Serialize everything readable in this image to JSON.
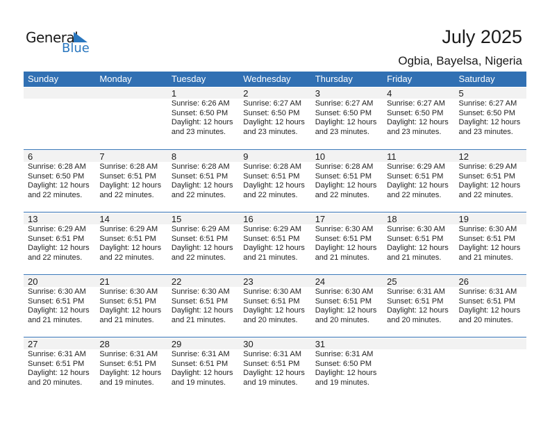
{
  "logo": {
    "word1": "General",
    "word2": "Blue"
  },
  "title": "July 2025",
  "location": "Ogbia, Bayelsa, Nigeria",
  "colors": {
    "header": "#3170b3",
    "brand": "#2a77bf",
    "band": "#f2f2f2"
  },
  "weekdays": [
    "Sunday",
    "Monday",
    "Tuesday",
    "Wednesday",
    "Thursday",
    "Friday",
    "Saturday"
  ],
  "weeks": [
    [
      null,
      null,
      {
        "day": "1",
        "sunrise": "Sunrise: 6:26 AM",
        "sunset": "Sunset: 6:50 PM",
        "daylight": "Daylight: 12 hours",
        "minutes": "and 23 minutes."
      },
      {
        "day": "2",
        "sunrise": "Sunrise: 6:27 AM",
        "sunset": "Sunset: 6:50 PM",
        "daylight": "Daylight: 12 hours",
        "minutes": "and 23 minutes."
      },
      {
        "day": "3",
        "sunrise": "Sunrise: 6:27 AM",
        "sunset": "Sunset: 6:50 PM",
        "daylight": "Daylight: 12 hours",
        "minutes": "and 23 minutes."
      },
      {
        "day": "4",
        "sunrise": "Sunrise: 6:27 AM",
        "sunset": "Sunset: 6:50 PM",
        "daylight": "Daylight: 12 hours",
        "minutes": "and 23 minutes."
      },
      {
        "day": "5",
        "sunrise": "Sunrise: 6:27 AM",
        "sunset": "Sunset: 6:50 PM",
        "daylight": "Daylight: 12 hours",
        "minutes": "and 23 minutes."
      }
    ],
    [
      {
        "day": "6",
        "sunrise": "Sunrise: 6:28 AM",
        "sunset": "Sunset: 6:50 PM",
        "daylight": "Daylight: 12 hours",
        "minutes": "and 22 minutes."
      },
      {
        "day": "7",
        "sunrise": "Sunrise: 6:28 AM",
        "sunset": "Sunset: 6:51 PM",
        "daylight": "Daylight: 12 hours",
        "minutes": "and 22 minutes."
      },
      {
        "day": "8",
        "sunrise": "Sunrise: 6:28 AM",
        "sunset": "Sunset: 6:51 PM",
        "daylight": "Daylight: 12 hours",
        "minutes": "and 22 minutes."
      },
      {
        "day": "9",
        "sunrise": "Sunrise: 6:28 AM",
        "sunset": "Sunset: 6:51 PM",
        "daylight": "Daylight: 12 hours",
        "minutes": "and 22 minutes."
      },
      {
        "day": "10",
        "sunrise": "Sunrise: 6:28 AM",
        "sunset": "Sunset: 6:51 PM",
        "daylight": "Daylight: 12 hours",
        "minutes": "and 22 minutes."
      },
      {
        "day": "11",
        "sunrise": "Sunrise: 6:29 AM",
        "sunset": "Sunset: 6:51 PM",
        "daylight": "Daylight: 12 hours",
        "minutes": "and 22 minutes."
      },
      {
        "day": "12",
        "sunrise": "Sunrise: 6:29 AM",
        "sunset": "Sunset: 6:51 PM",
        "daylight": "Daylight: 12 hours",
        "minutes": "and 22 minutes."
      }
    ],
    [
      {
        "day": "13",
        "sunrise": "Sunrise: 6:29 AM",
        "sunset": "Sunset: 6:51 PM",
        "daylight": "Daylight: 12 hours",
        "minutes": "and 22 minutes."
      },
      {
        "day": "14",
        "sunrise": "Sunrise: 6:29 AM",
        "sunset": "Sunset: 6:51 PM",
        "daylight": "Daylight: 12 hours",
        "minutes": "and 22 minutes."
      },
      {
        "day": "15",
        "sunrise": "Sunrise: 6:29 AM",
        "sunset": "Sunset: 6:51 PM",
        "daylight": "Daylight: 12 hours",
        "minutes": "and 22 minutes."
      },
      {
        "day": "16",
        "sunrise": "Sunrise: 6:29 AM",
        "sunset": "Sunset: 6:51 PM",
        "daylight": "Daylight: 12 hours",
        "minutes": "and 21 minutes."
      },
      {
        "day": "17",
        "sunrise": "Sunrise: 6:30 AM",
        "sunset": "Sunset: 6:51 PM",
        "daylight": "Daylight: 12 hours",
        "minutes": "and 21 minutes."
      },
      {
        "day": "18",
        "sunrise": "Sunrise: 6:30 AM",
        "sunset": "Sunset: 6:51 PM",
        "daylight": "Daylight: 12 hours",
        "minutes": "and 21 minutes."
      },
      {
        "day": "19",
        "sunrise": "Sunrise: 6:30 AM",
        "sunset": "Sunset: 6:51 PM",
        "daylight": "Daylight: 12 hours",
        "minutes": "and 21 minutes."
      }
    ],
    [
      {
        "day": "20",
        "sunrise": "Sunrise: 6:30 AM",
        "sunset": "Sunset: 6:51 PM",
        "daylight": "Daylight: 12 hours",
        "minutes": "and 21 minutes."
      },
      {
        "day": "21",
        "sunrise": "Sunrise: 6:30 AM",
        "sunset": "Sunset: 6:51 PM",
        "daylight": "Daylight: 12 hours",
        "minutes": "and 21 minutes."
      },
      {
        "day": "22",
        "sunrise": "Sunrise: 6:30 AM",
        "sunset": "Sunset: 6:51 PM",
        "daylight": "Daylight: 12 hours",
        "minutes": "and 21 minutes."
      },
      {
        "day": "23",
        "sunrise": "Sunrise: 6:30 AM",
        "sunset": "Sunset: 6:51 PM",
        "daylight": "Daylight: 12 hours",
        "minutes": "and 20 minutes."
      },
      {
        "day": "24",
        "sunrise": "Sunrise: 6:30 AM",
        "sunset": "Sunset: 6:51 PM",
        "daylight": "Daylight: 12 hours",
        "minutes": "and 20 minutes."
      },
      {
        "day": "25",
        "sunrise": "Sunrise: 6:31 AM",
        "sunset": "Sunset: 6:51 PM",
        "daylight": "Daylight: 12 hours",
        "minutes": "and 20 minutes."
      },
      {
        "day": "26",
        "sunrise": "Sunrise: 6:31 AM",
        "sunset": "Sunset: 6:51 PM",
        "daylight": "Daylight: 12 hours",
        "minutes": "and 20 minutes."
      }
    ],
    [
      {
        "day": "27",
        "sunrise": "Sunrise: 6:31 AM",
        "sunset": "Sunset: 6:51 PM",
        "daylight": "Daylight: 12 hours",
        "minutes": "and 20 minutes."
      },
      {
        "day": "28",
        "sunrise": "Sunrise: 6:31 AM",
        "sunset": "Sunset: 6:51 PM",
        "daylight": "Daylight: 12 hours",
        "minutes": "and 19 minutes."
      },
      {
        "day": "29",
        "sunrise": "Sunrise: 6:31 AM",
        "sunset": "Sunset: 6:51 PM",
        "daylight": "Daylight: 12 hours",
        "minutes": "and 19 minutes."
      },
      {
        "day": "30",
        "sunrise": "Sunrise: 6:31 AM",
        "sunset": "Sunset: 6:51 PM",
        "daylight": "Daylight: 12 hours",
        "minutes": "and 19 minutes."
      },
      {
        "day": "31",
        "sunrise": "Sunrise: 6:31 AM",
        "sunset": "Sunset: 6:50 PM",
        "daylight": "Daylight: 12 hours",
        "minutes": "and 19 minutes."
      },
      null,
      null
    ]
  ]
}
